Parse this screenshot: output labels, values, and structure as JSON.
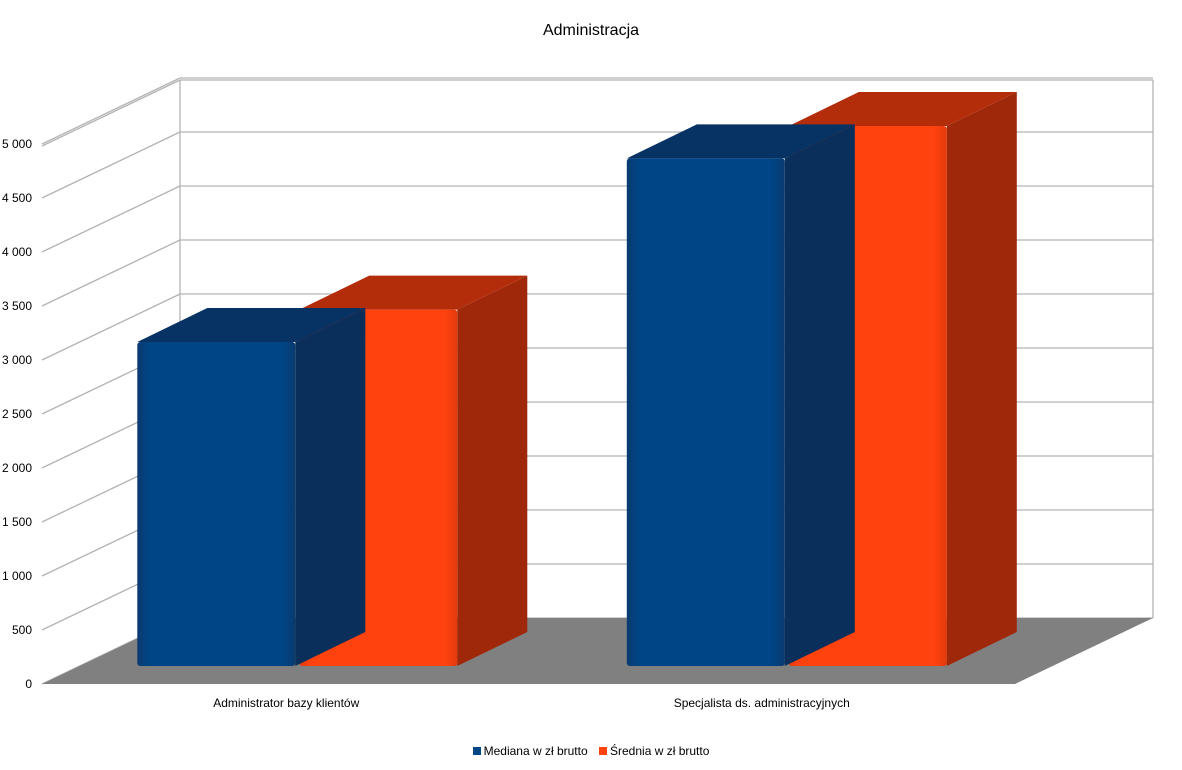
{
  "chart_data": {
    "type": "bar",
    "title": "Administracja",
    "categories": [
      "Administrator bazy klientów",
      "Specjalista ds. administracyjnych"
    ],
    "series": [
      {
        "name": "Mediana w zł brutto",
        "values": [
          3000,
          4700
        ],
        "color": "#004586"
      },
      {
        "name": "Średnia w zł brutto",
        "values": [
          3300,
          5000
        ],
        "color": "#ff420e"
      }
    ],
    "yticks": [
      "0",
      "500",
      "1 000",
      "1 500",
      "2 000",
      "2 500",
      "3 000",
      "3 500",
      "4 000",
      "4 500",
      "5 000"
    ],
    "ylim": [
      0,
      5000
    ],
    "grid": true,
    "legend_position": "bottom",
    "floor_color": "#808080"
  }
}
